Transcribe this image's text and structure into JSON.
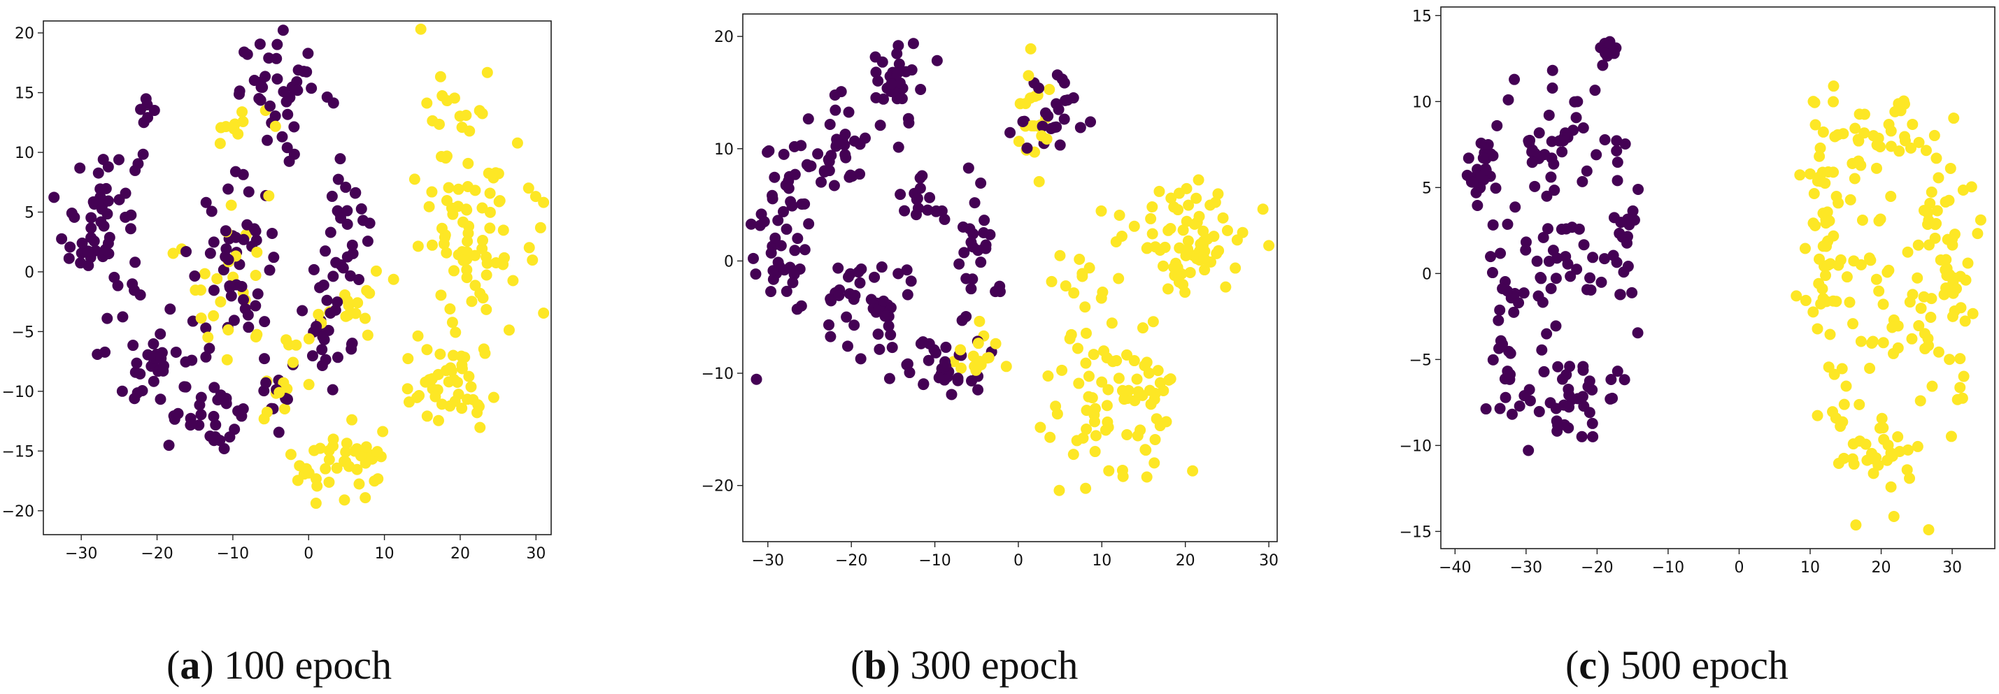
{
  "colors": {
    "class_a": "#440154",
    "class_b": "#fde725",
    "axis": "#222222"
  },
  "chart_data": [
    {
      "type": "scatter",
      "id": "a",
      "caption_letter": "a",
      "caption_text": "100 epoch",
      "xlim": [
        -35,
        32
      ],
      "ylim": [
        -22,
        21
      ],
      "xticks": [
        -30,
        -20,
        -10,
        0,
        10,
        20,
        30
      ],
      "yticks": [
        -20,
        -15,
        -10,
        -5,
        0,
        5,
        10,
        15,
        20
      ],
      "series": [
        {
          "name": "class_a",
          "color": "#440154",
          "clusters": [
            {
              "cx": -27,
              "cy": 4,
              "sx": 3.5,
              "sy": 5,
              "n": 60
            },
            {
              "cx": -20,
              "cy": -8,
              "sx": 3,
              "sy": 4,
              "n": 35
            },
            {
              "cx": -12,
              "cy": -12,
              "sx": 3,
              "sy": 2,
              "n": 20
            },
            {
              "cx": -10,
              "cy": 0,
              "sx": 4,
              "sy": 5,
              "n": 50
            },
            {
              "cx": -3,
              "cy": 15,
              "sx": 4,
              "sy": 3,
              "n": 40
            },
            {
              "cx": 3,
              "cy": -3,
              "sx": 3,
              "sy": 4,
              "n": 35
            },
            {
              "cx": 5,
              "cy": 5,
              "sx": 2,
              "sy": 2,
              "n": 15
            },
            {
              "cx": -21,
              "cy": 13.5,
              "sx": 1,
              "sy": 1,
              "n": 6
            },
            {
              "cx": -4,
              "cy": -11,
              "sx": 1.5,
              "sy": 2,
              "n": 10
            }
          ]
        },
        {
          "name": "class_b",
          "color": "#fde725",
          "clusters": [
            {
              "cx": 22,
              "cy": 6,
              "sx": 5,
              "sy": 7,
              "n": 90
            },
            {
              "cx": 18,
              "cy": -10,
              "sx": 4,
              "sy": 3,
              "n": 45
            },
            {
              "cx": 5,
              "cy": -16,
              "sx": 5,
              "sy": 2,
              "n": 40
            },
            {
              "cx": -4,
              "cy": -9,
              "sx": 2,
              "sy": 4,
              "n": 15
            },
            {
              "cx": -10,
              "cy": 12,
              "sx": 3,
              "sy": 1.5,
              "n": 10
            },
            {
              "cx": -10,
              "cy": 0,
              "sx": 5,
              "sy": 5,
              "n": 25
            },
            {
              "cx": 5,
              "cy": -3,
              "sx": 3,
              "sy": 3,
              "n": 15
            }
          ]
        }
      ]
    },
    {
      "type": "scatter",
      "id": "b",
      "caption_letter": "b",
      "caption_text": "300 epoch",
      "xlim": [
        -33,
        31
      ],
      "ylim": [
        -25,
        22
      ],
      "xticks": [
        -30,
        -20,
        -10,
        0,
        10,
        20,
        30
      ],
      "yticks": [
        -20,
        -10,
        0,
        10,
        20
      ],
      "series": [
        {
          "name": "class_a",
          "color": "#440154",
          "clusters": [
            {
              "cx": -28,
              "cy": 3,
              "sx": 2.5,
              "sy": 6,
              "n": 50
            },
            {
              "cx": -22,
              "cy": 10,
              "sx": 2.5,
              "sy": 3,
              "n": 30
            },
            {
              "cx": -15,
              "cy": 16,
              "sx": 2.5,
              "sy": 3,
              "n": 35
            },
            {
              "cx": -18,
              "cy": -4,
              "sx": 4,
              "sy": 3,
              "n": 40
            },
            {
              "cx": -10,
              "cy": -9,
              "sx": 4,
              "sy": 2,
              "n": 35
            },
            {
              "cx": -5,
              "cy": 2,
              "sx": 2.5,
              "sy": 4,
              "n": 25
            },
            {
              "cx": 4,
              "cy": 13,
              "sx": 3,
              "sy": 2.5,
              "n": 25
            },
            {
              "cx": -12,
              "cy": 6,
              "sx": 2.5,
              "sy": 2.5,
              "n": 15
            }
          ]
        },
        {
          "name": "class_b",
          "color": "#fde725",
          "clusters": [
            {
              "cx": 20,
              "cy": 2,
              "sx": 5,
              "sy": 3.5,
              "n": 75
            },
            {
              "cx": 12,
              "cy": -13,
              "sx": 6,
              "sy": 4,
              "n": 75
            },
            {
              "cx": 2,
              "cy": 13,
              "sx": 1.5,
              "sy": 2.5,
              "n": 20
            },
            {
              "cx": -5,
              "cy": -8,
              "sx": 2,
              "sy": 2,
              "n": 15
            },
            {
              "cx": 7,
              "cy": -2,
              "sx": 2,
              "sy": 4,
              "n": 15
            }
          ]
        }
      ]
    },
    {
      "type": "scatter",
      "id": "c",
      "caption_letter": "c",
      "caption_text": "500 epoch",
      "xlim": [
        -42,
        36
      ],
      "ylim": [
        -16,
        15.5
      ],
      "xticks": [
        -40,
        -30,
        -20,
        -10,
        0,
        10,
        20,
        30
      ],
      "yticks": [
        -15,
        -10,
        -5,
        0,
        5,
        10,
        15
      ],
      "series": [
        {
          "name": "class_a",
          "color": "#440154",
          "clusters": [
            {
              "cx": -36,
              "cy": 6,
              "sx": 2,
              "sy": 1.5,
              "n": 25
            },
            {
              "cx": -26,
              "cy": 8,
              "sx": 6,
              "sy": 2.5,
              "n": 45
            },
            {
              "cx": -19,
              "cy": 13,
              "sx": 1,
              "sy": 0.7,
              "n": 10
            },
            {
              "cx": -25,
              "cy": 0,
              "sx": 6,
              "sy": 2,
              "n": 35
            },
            {
              "cx": -25,
              "cy": -7,
              "sx": 6,
              "sy": 2,
              "n": 50
            },
            {
              "cx": -16,
              "cy": 2,
              "sx": 1.2,
              "sy": 4,
              "n": 20
            },
            {
              "cx": -33,
              "cy": -3,
              "sx": 1.5,
              "sy": 4,
              "n": 20
            }
          ]
        },
        {
          "name": "class_b",
          "color": "#fde725",
          "clusters": [
            {
              "cx": 12,
              "cy": 2,
              "sx": 2,
              "sy": 6,
              "n": 60
            },
            {
              "cx": 29,
              "cy": 0,
              "sx": 3,
              "sy": 6,
              "n": 70
            },
            {
              "cx": 20,
              "cy": 8,
              "sx": 5,
              "sy": 1.5,
              "n": 30
            },
            {
              "cx": 19,
              "cy": -10,
              "sx": 4,
              "sy": 2.5,
              "n": 40
            },
            {
              "cx": 19,
              "cy": 0,
              "sx": 4,
              "sy": 4,
              "n": 30
            }
          ]
        }
      ]
    }
  ]
}
